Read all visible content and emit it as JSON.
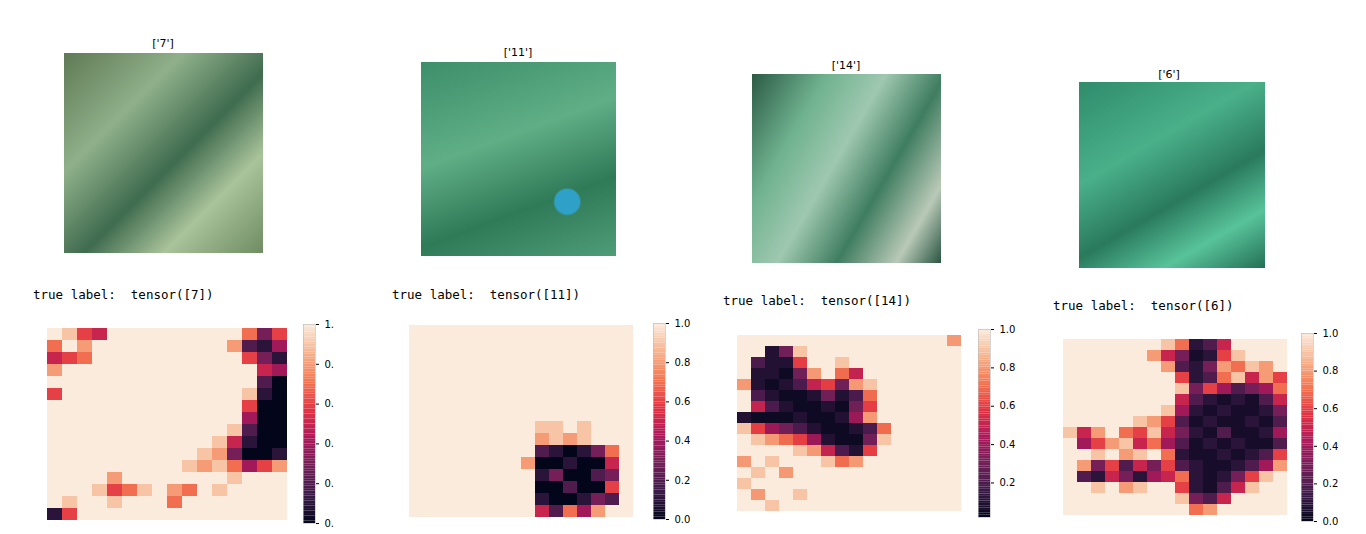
{
  "chart_data": [
    {
      "type": "heatmap",
      "title": "['7']",
      "annotation": "true label:  tensor([7])",
      "tick_labels": false,
      "zlim": [
        0,
        1
      ],
      "zticks": [
        {
          "value": 0,
          "label": "0."
        },
        {
          "value": 0.2,
          "label": "0."
        },
        {
          "value": 0.4,
          "label": "0."
        },
        {
          "value": 0.6,
          "label": "0."
        },
        {
          "value": 0.8,
          "label": "0."
        },
        {
          "value": 1,
          "label": "1."
        }
      ],
      "cells": [
        [
          1,
          0.9,
          0.6,
          0.5,
          1,
          1,
          1,
          1,
          1,
          1,
          1,
          1,
          1,
          0.7,
          0.3,
          0.6
        ],
        [
          0.7,
          1,
          0.8,
          1,
          1,
          1,
          1,
          1,
          1,
          1,
          1,
          1,
          0.8,
          0.2,
          0.1,
          0.4
        ],
        [
          0.5,
          0.6,
          0.7,
          1,
          1,
          1,
          1,
          1,
          1,
          1,
          1,
          1,
          1,
          0.6,
          0.3,
          0.1
        ],
        [
          0.8,
          1,
          1,
          1,
          1,
          1,
          1,
          1,
          1,
          1,
          1,
          1,
          1,
          1,
          0.5,
          0.4
        ],
        [
          1,
          1,
          1,
          1,
          1,
          1,
          1,
          1,
          1,
          1,
          1,
          1,
          1,
          1,
          0.2,
          0.0
        ],
        [
          0.6,
          1,
          1,
          1,
          1,
          1,
          1,
          1,
          1,
          1,
          1,
          1,
          1,
          0.9,
          0.1,
          0.0
        ],
        [
          1,
          1,
          1,
          1,
          1,
          1,
          1,
          1,
          1,
          1,
          1,
          1,
          1,
          0.6,
          0.0,
          0.0
        ],
        [
          1,
          1,
          1,
          1,
          1,
          1,
          1,
          1,
          1,
          1,
          1,
          1,
          1,
          0.4,
          0.0,
          0.0
        ],
        [
          1,
          1,
          1,
          1,
          1,
          1,
          1,
          1,
          1,
          1,
          1,
          1,
          0.9,
          0.2,
          0.0,
          0.0
        ],
        [
          1,
          1,
          1,
          1,
          1,
          1,
          1,
          1,
          1,
          1,
          1,
          0.9,
          0.5,
          0.1,
          0.0,
          0.0
        ],
        [
          1,
          1,
          1,
          1,
          1,
          1,
          1,
          1,
          1,
          1,
          0.9,
          0.8,
          0.3,
          0.0,
          0.0,
          0.1
        ],
        [
          1,
          1,
          1,
          1,
          1,
          1,
          1,
          1,
          1,
          0.9,
          0.8,
          0.9,
          0.7,
          0.4,
          0.6,
          0.8
        ],
        [
          1,
          1,
          1,
          1,
          0.8,
          1,
          1,
          1,
          1,
          1,
          1,
          1,
          0.9,
          1,
          1,
          1
        ],
        [
          1,
          1,
          1,
          0.9,
          0.6,
          0.7,
          0.9,
          1,
          0.8,
          0.7,
          1,
          0.9,
          1,
          1,
          1,
          1
        ],
        [
          1,
          0.9,
          1,
          1,
          0.9,
          1,
          1,
          1,
          0.7,
          1,
          1,
          1,
          1,
          1,
          1,
          1
        ],
        [
          0.1,
          0.6,
          1,
          1,
          1,
          1,
          1,
          1,
          1,
          1,
          1,
          1,
          1,
          1,
          1,
          1
        ]
      ]
    },
    {
      "type": "heatmap",
      "title": "['11']",
      "annotation": "true label:  tensor([11])",
      "tick_labels": false,
      "zlim": [
        0,
        1
      ],
      "zticks": [
        {
          "value": 0,
          "label": "0.0"
        },
        0.2,
        0.4,
        0.6,
        0.8,
        {
          "value": 1,
          "label": "1.0"
        }
      ],
      "cells": [
        [
          1,
          1,
          1,
          1,
          1,
          1,
          1,
          1,
          1,
          1,
          1,
          1,
          1,
          1,
          1,
          1
        ],
        [
          1,
          1,
          1,
          1,
          1,
          1,
          1,
          1,
          1,
          1,
          1,
          1,
          1,
          1,
          1,
          1
        ],
        [
          1,
          1,
          1,
          1,
          1,
          1,
          1,
          1,
          1,
          1,
          1,
          1,
          1,
          1,
          1,
          1
        ],
        [
          1,
          1,
          1,
          1,
          1,
          1,
          1,
          1,
          1,
          1,
          1,
          1,
          1,
          1,
          1,
          1
        ],
        [
          1,
          1,
          1,
          1,
          1,
          1,
          1,
          1,
          1,
          1,
          1,
          1,
          1,
          1,
          1,
          1
        ],
        [
          1,
          1,
          1,
          1,
          1,
          1,
          1,
          1,
          1,
          1,
          1,
          1,
          1,
          1,
          1,
          1
        ],
        [
          1,
          1,
          1,
          1,
          1,
          1,
          1,
          1,
          1,
          1,
          1,
          1,
          1,
          1,
          1,
          1
        ],
        [
          1,
          1,
          1,
          1,
          1,
          1,
          1,
          1,
          1,
          1,
          1,
          1,
          1,
          1,
          1,
          1
        ],
        [
          1,
          1,
          1,
          1,
          1,
          1,
          1,
          1,
          1,
          0.9,
          0.9,
          1,
          0.9,
          1,
          1,
          1
        ],
        [
          1,
          1,
          1,
          1,
          1,
          1,
          1,
          1,
          1,
          0.8,
          0.9,
          0.8,
          0.9,
          1,
          1,
          1
        ],
        [
          1,
          1,
          1,
          1,
          1,
          1,
          1,
          1,
          1,
          0.2,
          0.1,
          0.0,
          0.1,
          0.3,
          0.7,
          1
        ],
        [
          1,
          1,
          1,
          1,
          1,
          1,
          1,
          1,
          0.8,
          0.0,
          0.0,
          0.1,
          0.0,
          0.0,
          0.5,
          1
        ],
        [
          1,
          1,
          1,
          1,
          1,
          1,
          1,
          1,
          1,
          0.1,
          0.3,
          0.0,
          0.0,
          0.2,
          0.3,
          1
        ],
        [
          1,
          1,
          1,
          1,
          1,
          1,
          1,
          1,
          1,
          0.0,
          0.0,
          0.2,
          0.0,
          0.0,
          0.6,
          1
        ],
        [
          1,
          1,
          1,
          1,
          1,
          1,
          1,
          1,
          1,
          0.1,
          0.0,
          0.0,
          0.1,
          0.3,
          0.2,
          1
        ],
        [
          1,
          1,
          1,
          1,
          1,
          1,
          1,
          1,
          1,
          0.5,
          0.2,
          0.7,
          0.4,
          0.8,
          1,
          1
        ]
      ]
    },
    {
      "type": "heatmap",
      "title": "['14']",
      "annotation": "true label:  tensor([14])",
      "tick_labels": false,
      "zlim": [
        0.02,
        1
      ],
      "zticks": [
        0.2,
        0.4,
        0.6,
        0.8,
        {
          "value": 1,
          "label": "1.0"
        }
      ],
      "cells": [
        [
          1,
          1,
          1,
          1,
          1,
          1,
          1,
          1,
          1,
          1,
          1,
          1,
          1,
          1,
          1,
          0.8
        ],
        [
          1,
          1,
          0.1,
          0.3,
          0.9,
          1,
          1,
          1,
          1,
          1,
          1,
          1,
          1,
          1,
          1,
          1
        ],
        [
          1,
          0.2,
          0.1,
          0.1,
          0.6,
          1,
          1,
          0.9,
          1,
          1,
          1,
          1,
          1,
          1,
          1,
          1
        ],
        [
          1,
          0.1,
          0.1,
          0.05,
          0.3,
          0.8,
          1,
          0.7,
          0.5,
          1,
          1,
          1,
          1,
          1,
          1,
          1
        ],
        [
          0.8,
          0.1,
          0.05,
          0.1,
          0.2,
          0.5,
          0.6,
          0.3,
          0.8,
          0.9,
          1,
          1,
          1,
          1,
          1,
          1
        ],
        [
          1,
          0.2,
          0.1,
          0.05,
          0.05,
          0.1,
          0.3,
          0.1,
          0.2,
          0.7,
          1,
          1,
          1,
          1,
          1,
          1
        ],
        [
          1,
          0.5,
          0.2,
          0.1,
          0.05,
          0.05,
          0.1,
          0.05,
          0.3,
          0.6,
          1,
          1,
          1,
          1,
          1,
          1
        ],
        [
          0.1,
          0.05,
          0.05,
          0.05,
          0.1,
          0.05,
          0.05,
          0.1,
          0.4,
          0.8,
          1,
          1,
          1,
          1,
          1,
          1
        ],
        [
          0.9,
          0.6,
          0.4,
          0.3,
          0.2,
          0.1,
          0.05,
          0.05,
          0.1,
          0.2,
          0.7,
          1,
          1,
          1,
          1,
          1
        ],
        [
          1,
          0.9,
          0.8,
          0.7,
          0.6,
          0.4,
          0.1,
          0.05,
          0.05,
          0.3,
          0.9,
          1,
          1,
          1,
          1,
          1
        ],
        [
          1,
          1,
          1,
          1,
          0.9,
          0.8,
          0.5,
          0.2,
          0.1,
          0.6,
          1,
          1,
          1,
          1,
          1,
          1
        ],
        [
          0.8,
          1,
          0.9,
          1,
          1,
          1,
          0.9,
          0.7,
          0.8,
          1,
          1,
          1,
          1,
          1,
          1,
          1
        ],
        [
          1,
          0.9,
          1,
          0.8,
          1,
          1,
          1,
          1,
          1,
          1,
          1,
          1,
          1,
          1,
          1,
          1
        ],
        [
          0.9,
          1,
          1,
          1,
          1,
          1,
          1,
          1,
          1,
          1,
          1,
          1,
          1,
          1,
          1,
          1
        ],
        [
          1,
          0.8,
          1,
          1,
          0.9,
          1,
          1,
          1,
          1,
          1,
          1,
          1,
          1,
          1,
          1,
          1
        ],
        [
          1,
          1,
          0.9,
          1,
          1,
          1,
          1,
          1,
          1,
          1,
          1,
          1,
          1,
          1,
          1,
          1
        ]
      ]
    },
    {
      "type": "heatmap",
      "title": "['6']",
      "annotation": "true label:  tensor([6])",
      "tick_labels": false,
      "zlim": [
        0,
        1
      ],
      "zticks": [
        {
          "value": 0,
          "label": "0.0"
        },
        0.2,
        0.4,
        0.6,
        0.8,
        {
          "value": 1,
          "label": "1.0"
        }
      ],
      "cells": [
        [
          1,
          1,
          1,
          1,
          1,
          1,
          1,
          0.9,
          0.7,
          0.1,
          0.2,
          0.5,
          1,
          1,
          1,
          1
        ],
        [
          1,
          1,
          1,
          1,
          1,
          1,
          0.8,
          0.5,
          0.3,
          0.05,
          0.1,
          0.6,
          0.9,
          1,
          1,
          1
        ],
        [
          1,
          1,
          1,
          1,
          1,
          1,
          1,
          0.8,
          0.2,
          0.1,
          0.3,
          0.8,
          0.7,
          0.9,
          0.8,
          1
        ],
        [
          1,
          1,
          1,
          1,
          1,
          1,
          1,
          1,
          0.6,
          0.1,
          0.2,
          0.7,
          0.9,
          0.5,
          0.8,
          0.6
        ],
        [
          1,
          1,
          1,
          1,
          1,
          1,
          1,
          1,
          0.9,
          0.3,
          0.6,
          0.4,
          0.2,
          0.3,
          0.4,
          0.7
        ],
        [
          1,
          1,
          1,
          1,
          1,
          1,
          1,
          1,
          0.5,
          0.2,
          0.1,
          0.05,
          0.1,
          0.05,
          0.2,
          0.5
        ],
        [
          1,
          1,
          1,
          1,
          1,
          1,
          1,
          0.9,
          0.4,
          0.1,
          0.05,
          0.1,
          0.05,
          0.05,
          0.1,
          0.3
        ],
        [
          1,
          1,
          1,
          1,
          1,
          0.9,
          0.8,
          0.6,
          0.2,
          0.05,
          0.1,
          0.05,
          0.05,
          0.1,
          0.05,
          0.2
        ],
        [
          0.9,
          0.5,
          0.8,
          1,
          0.7,
          0.6,
          0.9,
          0.5,
          0.3,
          0.1,
          0.05,
          0.2,
          0.05,
          0.05,
          0.1,
          0.4
        ],
        [
          1,
          0.4,
          0.6,
          0.8,
          0.9,
          0.5,
          0.7,
          0.4,
          0.2,
          0.05,
          0.1,
          0.05,
          0.1,
          0.05,
          0.05,
          0.2
        ],
        [
          1,
          1,
          0.9,
          1,
          0.8,
          0.9,
          1,
          0.7,
          0.1,
          0.05,
          0.05,
          0.1,
          0.05,
          0.1,
          0.2,
          0.6
        ],
        [
          1,
          0.8,
          0.3,
          0.6,
          0.2,
          0.5,
          0.3,
          0.6,
          0.2,
          0.1,
          0.05,
          0.05,
          0.1,
          0.2,
          0.4,
          0.8
        ],
        [
          1,
          0.2,
          0.1,
          0.5,
          0.3,
          0.1,
          0.4,
          0.5,
          0.7,
          0.1,
          0.05,
          0.1,
          0.3,
          0.6,
          0.9,
          1
        ],
        [
          1,
          1,
          0.9,
          1,
          0.8,
          0.9,
          1,
          1,
          0.6,
          0.1,
          0.05,
          0.2,
          0.5,
          0.9,
          1,
          1
        ],
        [
          1,
          1,
          1,
          1,
          1,
          1,
          1,
          1,
          0.9,
          0.3,
          0.2,
          0.5,
          1,
          1,
          1,
          1
        ],
        [
          1,
          1,
          1,
          1,
          1,
          1,
          1,
          1,
          1,
          0.7,
          0.8,
          1,
          1,
          1,
          1,
          1
        ]
      ]
    }
  ]
}
